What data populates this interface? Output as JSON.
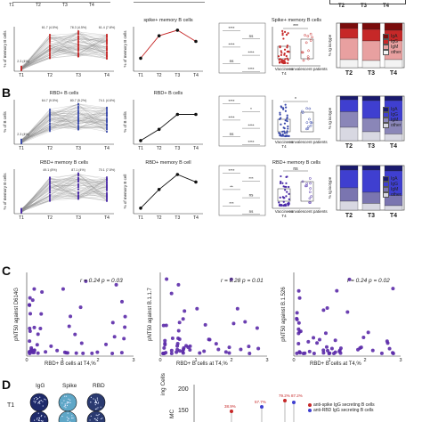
{
  "panel_letters": {
    "b": "B",
    "c": "C",
    "d": "D"
  },
  "timepoints": [
    "T1",
    "T2",
    "T3",
    "T4"
  ],
  "rows": [
    {
      "id": "spike-memory",
      "line_title": "",
      "line_ylabel": "% of memory B cells",
      "mean_title": "spike+ memory B cells",
      "mean_ylabel": "% of memory B cells",
      "mean_values": [
        0.3,
        0.9,
        1.05,
        0.75
      ],
      "scatter_title": "Spike+ memory B cells",
      "scatter_sig": "***",
      "group_labels": [
        "Vaccinees",
        "convalescent patients"
      ],
      "group_sub": "T4",
      "sig_labels": [
        "****",
        "ns",
        "****",
        "****",
        "ns",
        "****"
      ],
      "pct_labels": [
        "2.3 (4%)",
        "61.7 (4.5%)",
        "78.3 (4.5%)",
        "61.4 (7.8%)"
      ],
      "color": "#c62828",
      "stack_colors": [
        "#7a0c0c",
        "#c62828",
        "#e8a0a0",
        "#f3f3f3"
      ],
      "stack_values": [
        [
          0.12,
          0.22,
          0.48,
          0.18
        ],
        [
          0.14,
          0.26,
          0.44,
          0.16
        ],
        [
          0.16,
          0.24,
          0.42,
          0.18
        ]
      ]
    },
    {
      "id": "rbd-b",
      "line_title": "RBD+ B cells",
      "line_ylabel": "% of B cells",
      "mean_title": "RBD+ B cells",
      "mean_ylabel": "% of B cells",
      "mean_values": [
        0.05,
        0.35,
        0.75,
        0.75
      ],
      "scatter_title": "",
      "scatter_sig": "*",
      "group_labels": [
        "Vaccinees",
        "convalescent patients"
      ],
      "group_sub": "T4",
      "sig_labels": [
        "****",
        "*",
        "****",
        "****",
        "ns",
        "****"
      ],
      "pct_labels": [
        "2.3 (4%)",
        "64.7 (9.5%)",
        "80.7 (5.2%)",
        "74.1 (4.6%)"
      ],
      "color": "#3949ab",
      "stack_colors": [
        "#1a1a6e",
        "#3f3fd0",
        "#8a86b8",
        "#d8d8e2"
      ],
      "stack_values": [
        [
          0.08,
          0.27,
          0.35,
          0.3
        ],
        [
          0.1,
          0.4,
          0.3,
          0.2
        ],
        [
          0.1,
          0.45,
          0.3,
          0.15
        ]
      ]
    },
    {
      "id": "rbd-memory",
      "line_title": "RBD+ memory B cells",
      "line_ylabel": "% of memory B cells",
      "mean_title": "RBD+ memory B cell",
      "mean_ylabel": "% of memory B cell",
      "mean_values": [
        0.1,
        0.6,
        1.0,
        0.8
      ],
      "scatter_title": "RBD+ memory B cells",
      "scatter_sig": "ns",
      "group_labels": [
        "Vaccinees",
        "convalescent patients"
      ],
      "group_sub": "T4",
      "sig_labels": [
        "****",
        "***",
        "**",
        "ns",
        "***",
        "ns"
      ],
      "pct_labels": [
        "",
        "49.1 (8%)",
        "87.1 (4%)",
        "70.1 (7.5%)"
      ],
      "color": "#4a2aa8",
      "stack_colors": [
        "#1a1a6e",
        "#3f3fd0",
        "#7a75b0",
        "#d8d8e2"
      ],
      "stack_values": [
        [
          0.1,
          0.4,
          0.3,
          0.2
        ],
        [
          0.1,
          0.5,
          0.25,
          0.15
        ],
        [
          0.12,
          0.55,
          0.23,
          0.1
        ]
      ]
    }
  ],
  "isotype_legend": [
    "IgA",
    "IgG",
    "IgM",
    "other"
  ],
  "isotype_ylabel": "% Ig isotype",
  "stack_xlabels": [
    "T2",
    "T3",
    "T4"
  ],
  "correlations": [
    {
      "stat": "r = 0.24 p = 0.03",
      "ylabel": "pNT50 against D614G",
      "xlabel": "RBD+ B cells at T4,%"
    },
    {
      "stat": "r = 0.28 p = 0.01",
      "ylabel": "pNT50 against B.1.1.7",
      "xlabel": "RBD+ B cells at T4,%"
    },
    {
      "stat": "r = 0.24 p = 0.02",
      "ylabel": "pNT50 against B.1.526",
      "xlabel": "RBD+ B cells at T4,%"
    }
  ],
  "corr_xticks": [
    "0",
    "1",
    "2",
    "3"
  ],
  "elispot": {
    "columns": [
      "IgG",
      "Spike",
      "RBD"
    ],
    "row_label": "T1"
  },
  "panel_d_chart": {
    "yticks": [
      "200",
      "150"
    ],
    "ylabel_fragment": "ing Cells",
    "ylabel_fragment2": "MC",
    "pcts": [
      "38.9%",
      "57.7%",
      "79.2% 87.2%"
    ],
    "legend": [
      "anti-spike IgG secreting B cells",
      "anti-RBD IgG secreting B cells"
    ]
  },
  "top_stub_labels": [
    "T1",
    "T2",
    "T3",
    "T4",
    "T2",
    "T3",
    "T4"
  ]
}
